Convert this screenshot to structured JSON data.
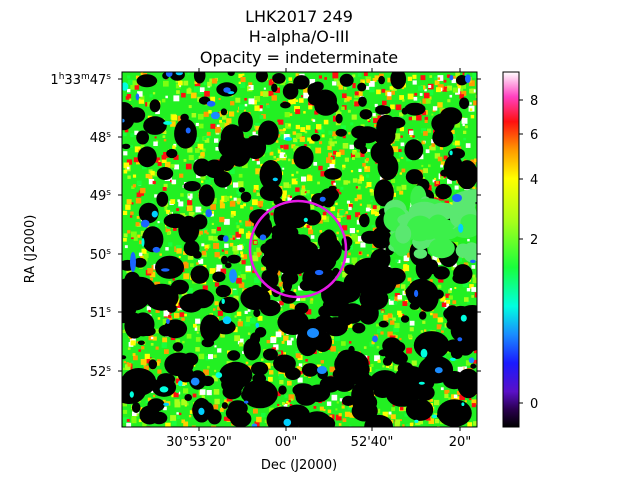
{
  "chart_data": {
    "type": "heatmap",
    "title": [
      "LHK2017 249",
      "H-alpha/O-III",
      "Opacity = indeterminate"
    ],
    "xlabel": "Dec (J2000)",
    "ylabel": "RA (J2000)",
    "x_ticks": [
      "30°53'20\"",
      "00\"",
      "52'40\"",
      "20\""
    ],
    "y_ticks": [
      {
        "base": "1",
        "h": "h",
        "mid": "33",
        "m": "m",
        "sec": "47",
        "s": "s"
      },
      {
        "base": "48",
        "s": "s"
      },
      {
        "base": "49",
        "s": "s"
      },
      {
        "base": "50",
        "s": "s"
      },
      {
        "base": "51",
        "s": "s"
      },
      {
        "base": "52",
        "s": "s"
      }
    ],
    "colorbar": {
      "colormap": "gist_ncar_r-like",
      "ticks": [
        0,
        2,
        4,
        6,
        8
      ],
      "tick_labels": [
        "0",
        "2",
        "4",
        "6",
        "8"
      ],
      "range": [
        -0.5,
        9
      ],
      "scale": "nonlinear"
    },
    "marker": {
      "shape": "circle",
      "color": "#e619e6"
    },
    "colors": {
      "background_low": "#000000",
      "dominant": "#22f022",
      "accent_low": "#1a66ff",
      "accent_high": "#ff1010"
    }
  }
}
